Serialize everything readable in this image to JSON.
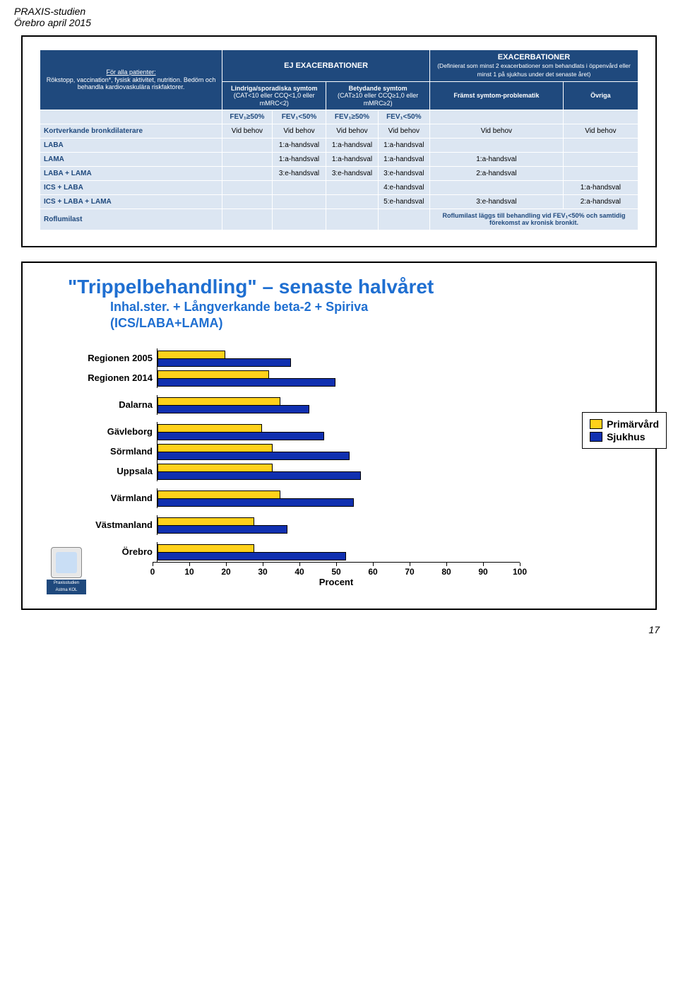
{
  "header": {
    "line1": "PRAXIS-studien",
    "line2": "Örebro april 2015"
  },
  "pageNum": "17",
  "table": {
    "patientsBox": {
      "title": "För alla patienter:",
      "lines": "Rökstopp, vaccination*, fysisk aktivitet, nutrition. Bedöm och behandla kardiovaskulära riskfaktorer."
    },
    "ejExac": "EJ EXACERBATIONER",
    "exac": "EXACERBATIONER",
    "exacSub": "(Definierat som minst 2 exacerbationer som behandlats i öppenvård eller minst 1 på sjukhus under det senaste året)",
    "lindriga": {
      "title": "Lindriga/sporadiska symtom",
      "sub": "(CAT<10 eller CCQ<1,0 eller mMRC<2)"
    },
    "betydande": {
      "title": "Betydande symtom",
      "sub": "(CAT≥10 eller CCQ≥1,0 eller mMRC≥2)"
    },
    "framst": "Främst symtom-problematik",
    "ovriga": "Övriga",
    "fev": {
      "ge50": "FEV₁≥50%",
      "lt50": "FEV₁<50%"
    },
    "rows": {
      "kort": "Kortverkande bronkdilaterare",
      "laba": "LABA",
      "lama": "LAMA",
      "labalama": "LABA + LAMA",
      "icslaba": "ICS + LABA",
      "icslabalama": "ICS + LABA + LAMA",
      "rof": "Roflumilast"
    },
    "vals": {
      "vidbehov": "Vid behov",
      "h1a": "1:a-handsval",
      "h2a": "2:a-handsval",
      "h3e": "3:e-handsval",
      "h4e": "4:e-handsval",
      "h5e": "5:e-handsval"
    },
    "rofText": "Roflumilast läggs till behandling vid FEV₁<50% och samtidig förekomst av kronisk bronkit."
  },
  "chart": {
    "title": "\"Trippelbehandling\" – senaste halvåret",
    "sub1": "Inhal.ster. + Långverkande beta-2 + Spiriva",
    "sub2": "(ICS/LABA+LAMA)",
    "axisTitle": "Procent",
    "legend": {
      "prim": "Primärvård",
      "sjuk": "Sjukhus"
    },
    "xmax": 100,
    "ticks": [
      0,
      10,
      20,
      30,
      40,
      50,
      60,
      70,
      80,
      90,
      100
    ],
    "categories": [
      {
        "label": "Regionen 2005",
        "prim": 18,
        "sjuk": 36,
        "gap": false
      },
      {
        "label": "Regionen 2014",
        "prim": 30,
        "sjuk": 48,
        "gap": true
      },
      {
        "label": "Dalarna",
        "prim": 33,
        "sjuk": 41,
        "gap": true
      },
      {
        "label": "Gävleborg",
        "prim": 28,
        "sjuk": 45,
        "gap": false
      },
      {
        "label": "Sörmland",
        "prim": 31,
        "sjuk": 52,
        "gap": false
      },
      {
        "label": "Uppsala",
        "prim": 31,
        "sjuk": 55,
        "gap": true
      },
      {
        "label": "Värmland",
        "prim": 33,
        "sjuk": 53,
        "gap": true
      },
      {
        "label": "Västmanland",
        "prim": 26,
        "sjuk": 35,
        "gap": true
      },
      {
        "label": "Örebro",
        "prim": 26,
        "sjuk": 51,
        "gap": false
      }
    ],
    "colors": {
      "prim": "#ffd11a",
      "sjuk": "#1030b0"
    },
    "logo": {
      "l1": "Praxisstudien",
      "l2": "Astma  KOL"
    }
  }
}
